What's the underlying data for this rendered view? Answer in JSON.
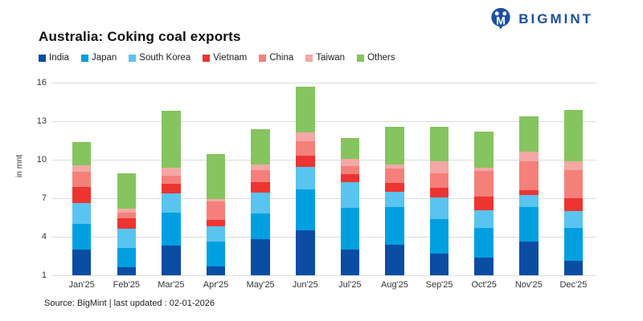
{
  "header": {
    "title": "Australia: Coking coal exports",
    "logo_text": "BIGMINT"
  },
  "footer": {
    "source_note": "Source: BigMint | last updated : 02-01-2026"
  },
  "colors": {
    "brand_navy": "#1d4f9e",
    "gridline": "#dcdcdf"
  },
  "chart_data": {
    "type": "bar",
    "stacked": true,
    "title": "Australia: Coking coal exports",
    "ylabel": "in mnt",
    "unit": "mnt",
    "legend_position": "top",
    "grid": true,
    "ylim": [
      1,
      16
    ],
    "yticks": [
      1,
      4,
      7,
      10,
      13,
      16
    ],
    "categories": [
      "Jan'25",
      "Feb'25",
      "Mar'25",
      "Apr'25",
      "May'25",
      "Jun'25",
      "Jul'25",
      "Aug'25",
      "Sep'25",
      "Oct'25",
      "Nov'25",
      "Dec'25"
    ],
    "series": [
      {
        "name": "India",
        "color": "#0a4da2",
        "values": [
          3.0,
          1.6,
          3.3,
          1.7,
          3.8,
          4.5,
          3.0,
          3.4,
          2.7,
          2.4,
          3.6,
          2.1
        ]
      },
      {
        "name": "Japan",
        "color": "#00a0e0",
        "values": [
          2.0,
          1.55,
          2.55,
          1.9,
          2.0,
          3.2,
          3.25,
          2.9,
          2.65,
          2.3,
          2.7,
          2.6
        ]
      },
      {
        "name": "South Korea",
        "color": "#59c4f0",
        "values": [
          1.65,
          1.45,
          1.5,
          1.2,
          1.65,
          1.75,
          2.0,
          1.2,
          1.7,
          1.35,
          0.95,
          1.3
        ]
      },
      {
        "name": "Vietnam",
        "color": "#ee3431",
        "values": [
          1.25,
          0.85,
          0.8,
          0.5,
          0.8,
          0.85,
          0.65,
          0.7,
          0.75,
          1.05,
          0.4,
          1.0
        ]
      },
      {
        "name": "China",
        "color": "#f5807a",
        "values": [
          1.15,
          0.4,
          0.6,
          1.45,
          0.95,
          1.15,
          0.6,
          1.1,
          1.15,
          2.05,
          2.25,
          2.2
        ]
      },
      {
        "name": "Taiwan",
        "color": "#f3a8a5",
        "values": [
          0.5,
          0.35,
          0.65,
          0.2,
          0.45,
          0.7,
          0.55,
          0.35,
          0.95,
          0.25,
          0.75,
          0.65
        ]
      },
      {
        "name": "Others",
        "color": "#86c45f",
        "values": [
          1.8,
          2.75,
          4.4,
          3.5,
          2.75,
          3.55,
          1.65,
          2.9,
          2.65,
          2.8,
          2.75,
          4.0
        ]
      }
    ],
    "totals": [
      11.35,
      8.95,
      13.8,
      10.45,
      12.4,
      15.7,
      11.7,
      12.55,
      12.55,
      12.2,
      13.4,
      13.85
    ]
  }
}
